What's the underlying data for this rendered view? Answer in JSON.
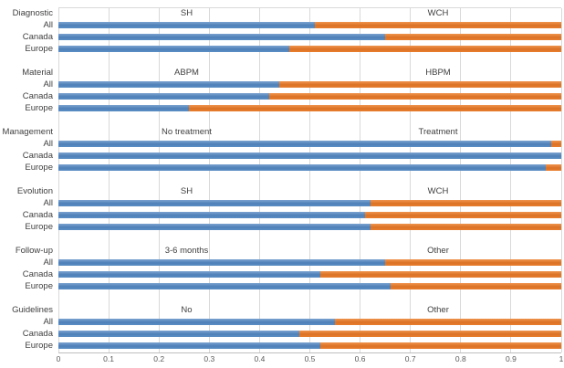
{
  "chart_data": {
    "type": "bar",
    "subtype": "horizontal-stacked-100pct",
    "title": "",
    "xlabel": "",
    "ylabel": "",
    "legend": "none",
    "grid": "vertical-light-gray",
    "x_axis": {
      "min": 0,
      "max": 1,
      "tick_labels": [
        "0",
        "0.1",
        "0.2",
        "0.3",
        "0.4",
        "0.5",
        "0.6",
        "0.7",
        "0.8",
        "0.9",
        "1"
      ]
    },
    "colors": {
      "series1_blue": "#5b8ec4",
      "series2_orange": "#e87e2e",
      "gridline": "#d9d9d9",
      "axis_line": "#bfbfbf",
      "text": "#404040"
    },
    "row_labels": [
      "All",
      "Canada",
      "Europe"
    ],
    "groups": [
      {
        "name": "Diagnostic",
        "left_label": "SH",
        "right_label": "WCH",
        "series": [
          {
            "row": "All",
            "blue": 0.51,
            "orange": 0.49
          },
          {
            "row": "Canada",
            "blue": 0.65,
            "orange": 0.35
          },
          {
            "row": "Europe",
            "blue": 0.46,
            "orange": 0.54
          }
        ]
      },
      {
        "name": "Material",
        "left_label": "ABPM",
        "right_label": "HBPM",
        "series": [
          {
            "row": "All",
            "blue": 0.44,
            "orange": 0.56
          },
          {
            "row": "Canada",
            "blue": 0.42,
            "orange": 0.58
          },
          {
            "row": "Europe",
            "blue": 0.26,
            "orange": 0.74
          }
        ]
      },
      {
        "name": "Management",
        "left_label": "No treatment",
        "right_label": "Treatment",
        "series": [
          {
            "row": "All",
            "blue": 0.98,
            "orange": 0.02
          },
          {
            "row": "Canada",
            "blue": 1.0,
            "orange": 0.0
          },
          {
            "row": "Europe",
            "blue": 0.97,
            "orange": 0.03
          }
        ]
      },
      {
        "name": "Evolution",
        "left_label": "SH",
        "right_label": "WCH",
        "series": [
          {
            "row": "All",
            "blue": 0.62,
            "orange": 0.38
          },
          {
            "row": "Canada",
            "blue": 0.61,
            "orange": 0.39
          },
          {
            "row": "Europe",
            "blue": 0.62,
            "orange": 0.38
          }
        ]
      },
      {
        "name": "Follow-up",
        "left_label": "3-6 months",
        "right_label": "Other",
        "series": [
          {
            "row": "All",
            "blue": 0.65,
            "orange": 0.35
          },
          {
            "row": "Canada",
            "blue": 0.52,
            "orange": 0.48
          },
          {
            "row": "Europe",
            "blue": 0.66,
            "orange": 0.34
          }
        ]
      },
      {
        "name": "Guidelines",
        "left_label": "No",
        "right_label": "Other",
        "series": [
          {
            "row": "All",
            "blue": 0.55,
            "orange": 0.45
          },
          {
            "row": "Canada",
            "blue": 0.48,
            "orange": 0.52
          },
          {
            "row": "Europe",
            "blue": 0.52,
            "orange": 0.48
          }
        ]
      }
    ]
  }
}
